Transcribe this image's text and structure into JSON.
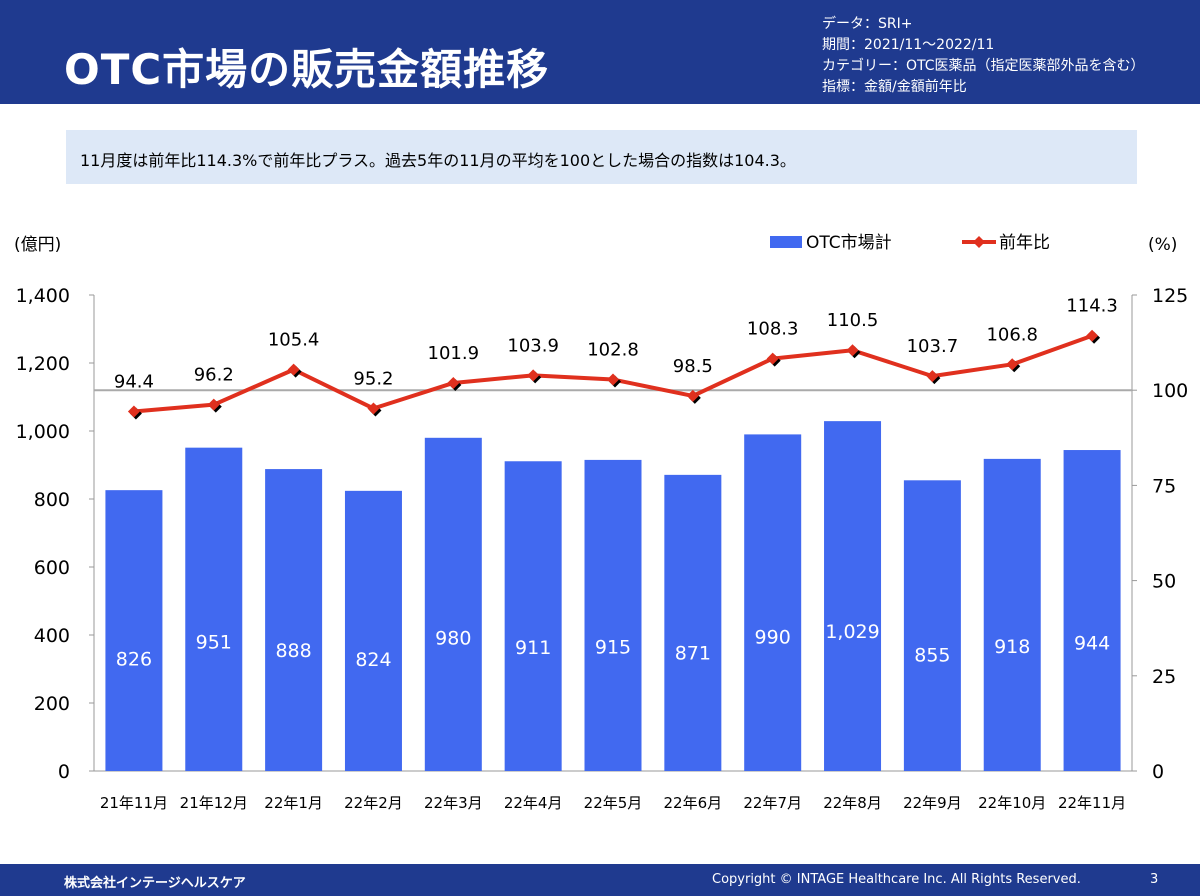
{
  "header": {
    "title": "OTC市場の販売金額推移",
    "meta": [
      "データ：SRI+",
      "期間：2021/11～2022/11",
      "カテゴリー：OTC医薬品（指定医薬部外品を含む）",
      "指標：金額/金額前年比"
    ]
  },
  "summary": "11月度は前年比114.3%で前年比プラス。過去5年の11月の平均を100とした場合の指数は104.3。",
  "colors": {
    "header": "#1f3a8f",
    "bar": "#4169f0",
    "line": "#e0301e",
    "summary_bg": "#dde8f7",
    "reference_line": "#aaaaaa"
  },
  "chart_data": {
    "type": "bar",
    "categories": [
      "21年11月",
      "21年12月",
      "22年1月",
      "22年2月",
      "22年3月",
      "22年4月",
      "22年5月",
      "22年6月",
      "22年7月",
      "22年8月",
      "22年9月",
      "22年10月",
      "22年11月"
    ],
    "series": [
      {
        "name": "OTC市場計",
        "type": "bar",
        "axis": "left",
        "values": [
          826,
          951,
          888,
          824,
          980,
          911,
          915,
          871,
          990,
          1029,
          855,
          918,
          944
        ],
        "labels": [
          "826",
          "951",
          "888",
          "824",
          "980",
          "911",
          "915",
          "871",
          "990",
          "1,029",
          "855",
          "918",
          "944"
        ]
      },
      {
        "name": "前年比",
        "type": "line",
        "axis": "right",
        "values": [
          94.4,
          96.2,
          105.4,
          95.2,
          101.9,
          103.9,
          102.8,
          98.5,
          108.3,
          110.5,
          103.7,
          106.8,
          114.3
        ],
        "labels": [
          "94.4",
          "96.2",
          "105.4",
          "95.2",
          "101.9",
          "103.9",
          "102.8",
          "98.5",
          "108.3",
          "110.5",
          "103.7",
          "106.8",
          "114.3"
        ]
      }
    ],
    "y_left": {
      "label": "(億円)",
      "ylim": [
        0,
        1400
      ],
      "ticks": [
        0,
        200,
        400,
        600,
        800,
        1000,
        1200,
        1400
      ],
      "tick_labels": [
        "0",
        "200",
        "400",
        "600",
        "800",
        "1,000",
        "1,200",
        "1,400"
      ]
    },
    "y_right": {
      "label": "(%)",
      "ylim": [
        0,
        125
      ],
      "ticks": [
        0,
        25,
        50,
        75,
        100,
        125
      ],
      "tick_labels": [
        "0",
        "25",
        "50",
        "75",
        "100",
        "125"
      ]
    },
    "reference_line": 100,
    "grid": false,
    "legend": "top-right"
  },
  "footer": {
    "company": "株式会社インテージヘルスケア",
    "copyright": "Copyright © INTAGE Healthcare Inc. All Rights Reserved.",
    "page": "3"
  }
}
